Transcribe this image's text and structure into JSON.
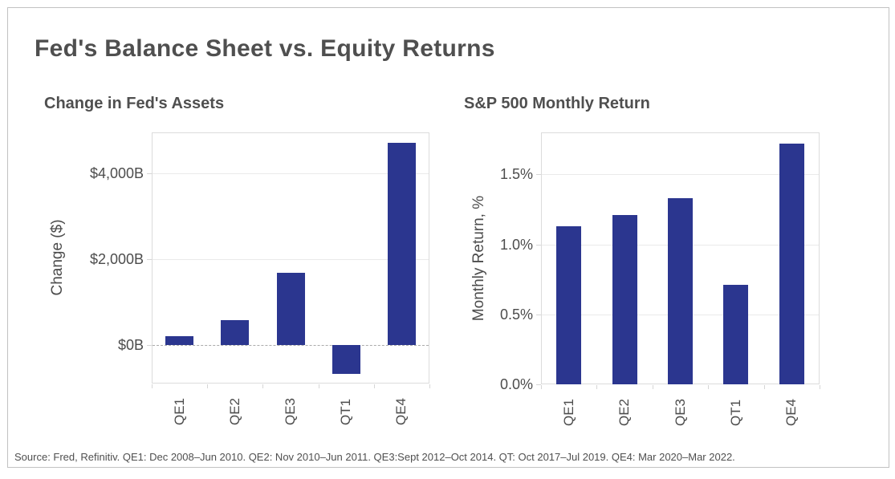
{
  "page": {
    "title": "Fed's Balance Sheet vs. Equity Returns",
    "source_note": "Source: Fred, Refinitiv. QE1: Dec 2008–Jun 2010. QE2: Nov 2010–Jun 2011. QE3:Sept 2012–Oct 2014. QT: Oct 2017–Jul 2019. QE4: Mar 2020–Mar 2022."
  },
  "colors": {
    "bar": "#2b368f",
    "text": "#4f4f4f",
    "gridline": "#eaeaea",
    "plot_border": "#dcdcdc",
    "zero_line": "#ababab",
    "frame_border": "#c2c2c2"
  },
  "chart_data": [
    {
      "type": "bar",
      "title": "Change in Fed's Assets",
      "ylabel": "Change ($)",
      "xlabel": "",
      "categories": [
        "QE1",
        "QE2",
        "QE3",
        "QT1",
        "QE4"
      ],
      "values": [
        200,
        580,
        1670,
        -680,
        4700
      ],
      "unit": "billions of dollars",
      "ylim": [
        -900,
        4950
      ],
      "yticks": [
        {
          "value": 0,
          "label": "$0B"
        },
        {
          "value": 2000,
          "label": "$2,000B"
        },
        {
          "value": 4000,
          "label": "$4,000B"
        }
      ],
      "zero_line": "dashed",
      "grid": true,
      "legend": false
    },
    {
      "type": "bar",
      "title": "S&P 500 Monthly Return",
      "ylabel": "Monthly Return, %",
      "xlabel": "",
      "categories": [
        "QE1",
        "QE2",
        "QE3",
        "QT1",
        "QE4"
      ],
      "values": [
        1.13,
        1.21,
        1.33,
        0.71,
        1.72
      ],
      "unit": "percent",
      "ylim": [
        0,
        1.8
      ],
      "yticks": [
        {
          "value": 0,
          "label": "0.0%"
        },
        {
          "value": 0.5,
          "label": "0.5%"
        },
        {
          "value": 1.0,
          "label": "1.0%"
        },
        {
          "value": 1.5,
          "label": "1.5%"
        }
      ],
      "zero_line": "none",
      "grid": true,
      "legend": false
    }
  ]
}
